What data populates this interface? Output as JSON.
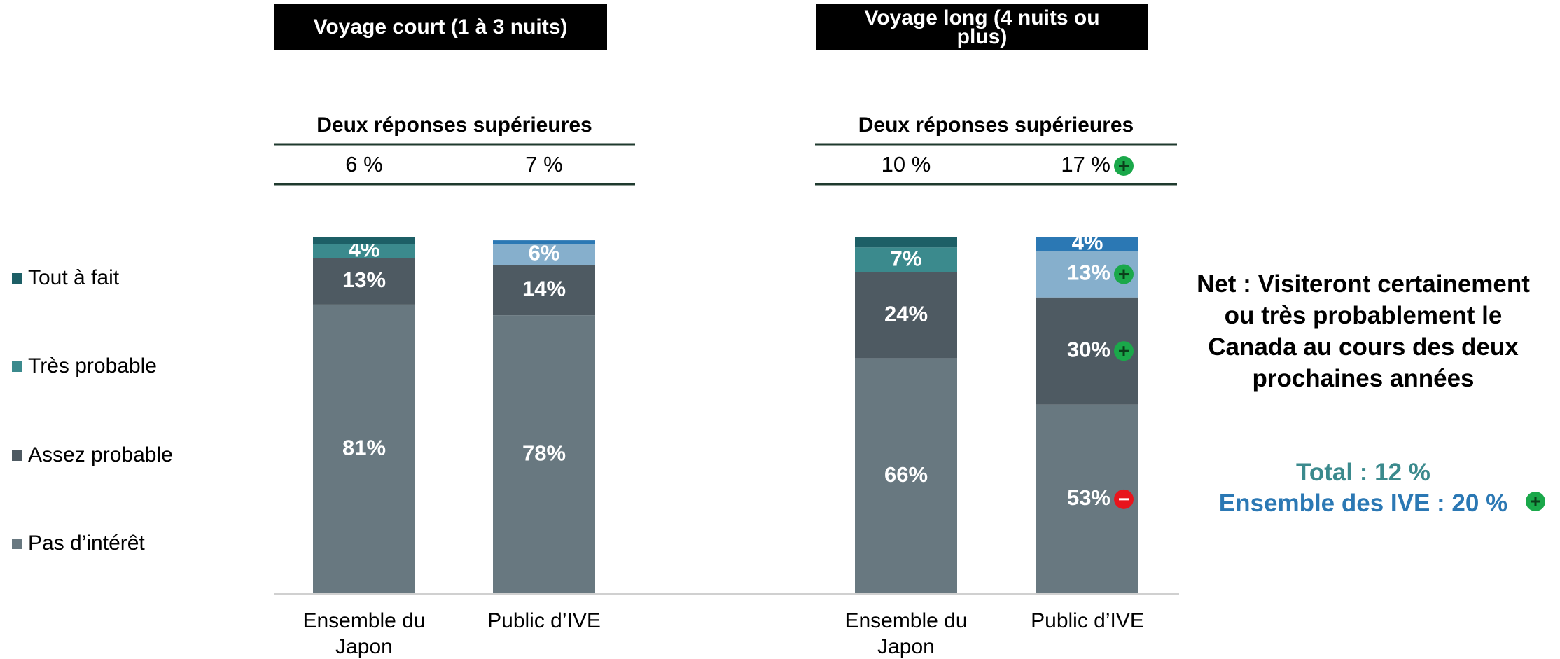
{
  "chart_data": {
    "type": "bar",
    "stacked": true,
    "ylim": [
      0,
      100
    ],
    "categories": [
      "Ensemble du Japon",
      "Public d’IVE",
      "Ensemble du Japon",
      "Public d’IVE"
    ],
    "groups": [
      {
        "title": "Voyage court (1 à 3 nuits)",
        "subtitle": "Deux réponses supérieures"
      },
      {
        "title": "Voyage long (4 nuits ou plus)",
        "subtitle": "Deux réponses supérieures"
      }
    ],
    "top_two": [
      6,
      7,
      10,
      17
    ],
    "top_two_labels": [
      "6 %",
      "7 %",
      "10 %",
      "17 %"
    ],
    "top_two_sig": [
      null,
      null,
      null,
      "up"
    ],
    "series": [
      {
        "name": "Pas d’intérêt",
        "colors": [
          "#687880",
          "#687880",
          "#687880",
          "#687880"
        ],
        "values": [
          81,
          78,
          66,
          53
        ],
        "value_labels": [
          "81%",
          "78%",
          "66%",
          "53%"
        ],
        "sig": [
          null,
          null,
          null,
          "down"
        ]
      },
      {
        "name": "Assez probable",
        "colors": [
          "#4e5a62",
          "#4e5a62",
          "#4e5a62",
          "#4e5a62"
        ],
        "values": [
          13,
          14,
          24,
          30
        ],
        "value_labels": [
          "13%",
          "14%",
          "24%",
          "30%"
        ],
        "sig": [
          null,
          null,
          null,
          "up"
        ]
      },
      {
        "name": "Très probable",
        "colors": [
          "#3b8a8d",
          "#86afcc",
          "#3b8a8d",
          "#86afcc"
        ],
        "values": [
          4,
          6,
          7,
          13
        ],
        "value_labels": [
          "4%",
          "6%",
          "7%",
          "13%"
        ],
        "sig": [
          null,
          null,
          null,
          "up"
        ]
      },
      {
        "name": "Tout à fait",
        "colors": [
          "#1d5f66",
          "#2b78b4",
          "#1d5f66",
          "#2b78b4"
        ],
        "values": [
          2,
          1,
          3,
          4
        ],
        "value_labels": [
          null,
          null,
          null,
          "4%"
        ],
        "sig": [
          null,
          null,
          null,
          null
        ]
      }
    ],
    "net": {
      "title": "Net : Visiteront certainement ou très probablement le Canada au cours des deux prochaines années",
      "total": "Total : 12 %",
      "ive": "Ensemble des IVE : 20 %",
      "ive_sig": "up",
      "total_color": "#3b8a8d",
      "ive_color": "#2b78b4"
    }
  }
}
